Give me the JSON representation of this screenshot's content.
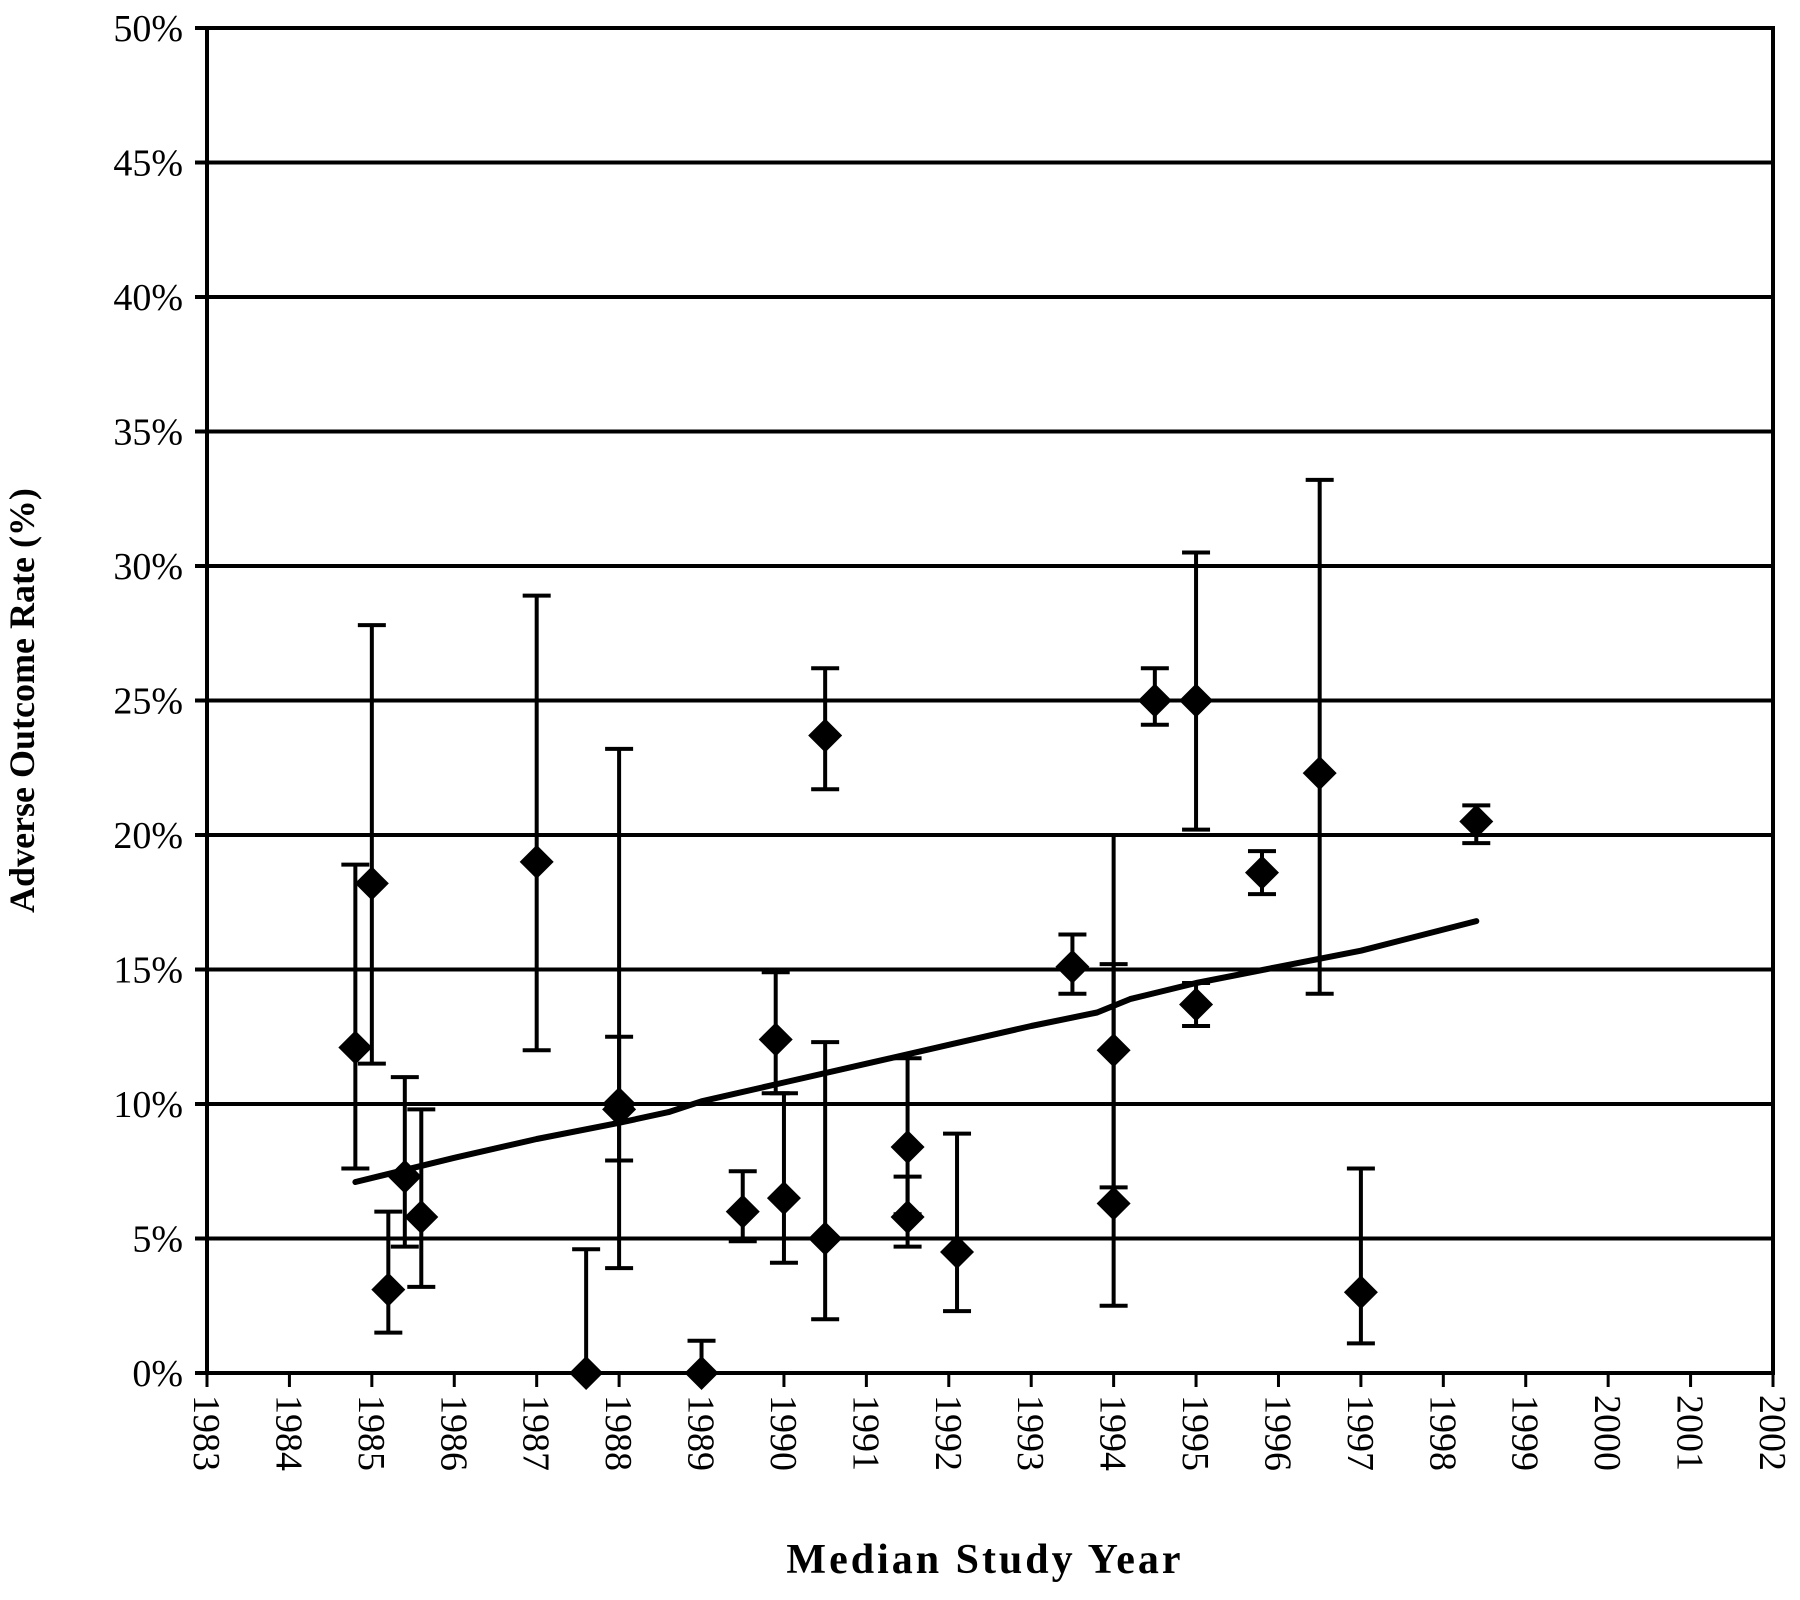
{
  "chart_data": {
    "type": "scatter",
    "title": "",
    "xlabel": "Median Study Year",
    "ylabel": "Adverse Outcome Rate (%)",
    "xlim": [
      1983,
      2002
    ],
    "ylim": [
      0,
      50
    ],
    "x_ticks": [
      "1983",
      "1984",
      "1985",
      "1986",
      "1987",
      "1988",
      "1989",
      "1990",
      "1991",
      "1992",
      "1993",
      "1994",
      "1995",
      "1996",
      "1997",
      "1998",
      "1999",
      "2000",
      "2001",
      "2002"
    ],
    "y_ticks": [
      "0%",
      "5%",
      "10%",
      "15%",
      "20%",
      "25%",
      "30%",
      "35%",
      "40%",
      "45%",
      "50%"
    ],
    "grid": "horizontal",
    "legend": "none",
    "marker": "diamond",
    "color": "#000000",
    "series": [
      {
        "points": [
          {
            "x": 1984.8,
            "y": 12.1,
            "lo": 7.6,
            "hi": 18.9
          },
          {
            "x": 1985.0,
            "y": 18.2,
            "lo": 11.5,
            "hi": 27.8
          },
          {
            "x": 1985.2,
            "y": 3.1,
            "lo": 1.5,
            "hi": 6.0
          },
          {
            "x": 1985.4,
            "y": 7.3,
            "lo": 4.7,
            "hi": 11.0
          },
          {
            "x": 1985.6,
            "y": 5.8,
            "lo": 3.2,
            "hi": 9.8
          },
          {
            "x": 1987.0,
            "y": 19.0,
            "lo": 12.0,
            "hi": 28.9
          },
          {
            "x": 1987.6,
            "y": 0.0,
            "lo": 0.0,
            "hi": 4.6
          },
          {
            "x": 1988.0,
            "y": 10.0,
            "lo": 7.9,
            "hi": 12.5
          },
          {
            "x": 1988.0,
            "y": 9.8,
            "lo": 3.9,
            "hi": 23.2
          },
          {
            "x": 1989.0,
            "y": 0.0,
            "lo": 0.0,
            "hi": 1.2
          },
          {
            "x": 1989.5,
            "y": 6.0,
            "lo": 4.9,
            "hi": 7.5
          },
          {
            "x": 1989.9,
            "y": 12.4,
            "lo": 10.4,
            "hi": 14.9
          },
          {
            "x": 1990.0,
            "y": 6.5,
            "lo": 4.1,
            "hi": 10.4
          },
          {
            "x": 1990.5,
            "y": 23.7,
            "lo": 21.7,
            "hi": 26.2
          },
          {
            "x": 1990.5,
            "y": 5.0,
            "lo": 2.0,
            "hi": 12.3
          },
          {
            "x": 1991.5,
            "y": 8.4,
            "lo": 5.9,
            "hi": 11.7
          },
          {
            "x": 1991.5,
            "y": 5.8,
            "lo": 4.7,
            "hi": 7.3
          },
          {
            "x": 1992.1,
            "y": 4.5,
            "lo": 2.3,
            "hi": 8.9
          },
          {
            "x": 1993.5,
            "y": 15.1,
            "lo": 14.1,
            "hi": 16.3
          },
          {
            "x": 1994.0,
            "y": 12.0,
            "lo": 6.9,
            "hi": 20.0
          },
          {
            "x": 1994.0,
            "y": 6.3,
            "lo": 2.5,
            "hi": 15.2
          },
          {
            "x": 1994.5,
            "y": 25.0,
            "lo": 24.1,
            "hi": 26.2
          },
          {
            "x": 1995.0,
            "y": 25.0,
            "lo": 20.2,
            "hi": 30.5
          },
          {
            "x": 1995.0,
            "y": 13.7,
            "lo": 12.9,
            "hi": 14.5
          },
          {
            "x": 1995.8,
            "y": 18.6,
            "lo": 17.8,
            "hi": 19.4
          },
          {
            "x": 1996.5,
            "y": 22.3,
            "lo": 14.1,
            "hi": 33.2
          },
          {
            "x": 1997.0,
            "y": 3.0,
            "lo": 1.1,
            "hi": 7.6
          },
          {
            "x": 1998.4,
            "y": 20.5,
            "lo": 19.7,
            "hi": 21.1
          }
        ]
      }
    ],
    "trend_line": {
      "points": [
        {
          "x": 1984.8,
          "y": 7.1
        },
        {
          "x": 1986.0,
          "y": 8.0
        },
        {
          "x": 1987.0,
          "y": 8.7
        },
        {
          "x": 1988.0,
          "y": 9.3
        },
        {
          "x": 1988.6,
          "y": 9.7
        },
        {
          "x": 1989.0,
          "y": 10.1
        },
        {
          "x": 1990.0,
          "y": 10.8
        },
        {
          "x": 1991.0,
          "y": 11.5
        },
        {
          "x": 1992.0,
          "y": 12.2
        },
        {
          "x": 1993.0,
          "y": 12.9
        },
        {
          "x": 1993.8,
          "y": 13.4
        },
        {
          "x": 1994.2,
          "y": 13.9
        },
        {
          "x": 1995.0,
          "y": 14.5
        },
        {
          "x": 1996.0,
          "y": 15.1
        },
        {
          "x": 1997.0,
          "y": 15.7
        },
        {
          "x": 1998.4,
          "y": 16.8
        }
      ]
    }
  }
}
